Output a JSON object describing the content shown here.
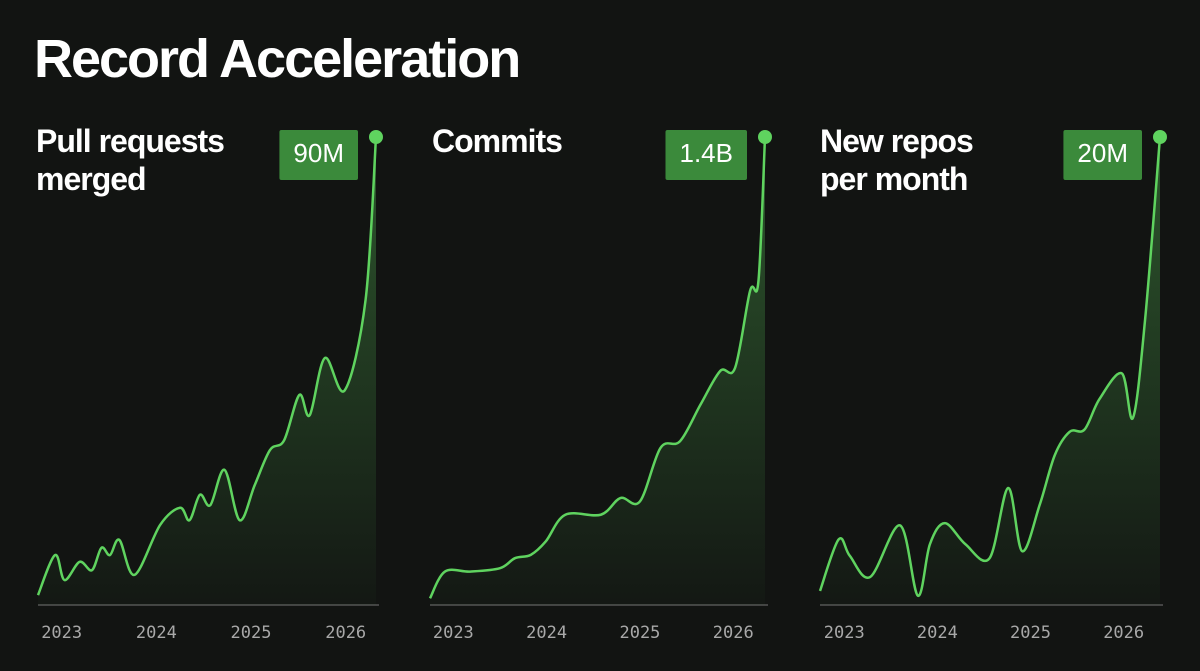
{
  "title": "Record Acceleration",
  "chart_data": [
    {
      "type": "line",
      "title": "Pull requests merged",
      "color": "#5fd35f",
      "x": [
        2022.75,
        2022.93,
        2023.03,
        2023.19,
        2023.32,
        2023.42,
        2023.51,
        2023.61,
        2023.77,
        2024.04,
        2024.25,
        2024.35,
        2024.46,
        2024.57,
        2024.72,
        2024.88,
        2025.04,
        2025.2,
        2025.35,
        2025.51,
        2025.62,
        2025.78,
        2025.99,
        2026.21,
        2026.32
      ],
      "values": [
        1.9,
        9.6,
        4.8,
        8.3,
        6.7,
        11,
        9.6,
        12.5,
        5.8,
        15.4,
        18.7,
        16.3,
        21.2,
        19.2,
        26,
        16.3,
        23.1,
        29.8,
        31.7,
        40.4,
        36.5,
        47.5,
        41.3,
        58.7,
        90
      ],
      "value_labels": [
        null,
        null,
        null,
        null,
        null,
        null,
        null,
        null,
        null,
        null,
        null,
        null,
        null,
        null,
        null,
        null,
        null,
        null,
        null,
        null,
        null,
        null,
        null,
        null,
        "90M"
      ],
      "xlim": [
        2022.75,
        2026.32
      ],
      "xticks": [
        2023,
        2024,
        2025,
        2026
      ],
      "ylim": [
        0,
        90
      ]
    },
    {
      "type": "line",
      "title": "Commits",
      "color": "#5fd35f",
      "x": [
        2022.75,
        2022.91,
        2023.18,
        2023.5,
        2023.66,
        2023.83,
        2023.99,
        2024.2,
        2024.58,
        2024.79,
        2025,
        2025.22,
        2025.43,
        2025.65,
        2025.86,
        2026.02,
        2026.18,
        2026.27,
        2026.34
      ],
      "values": [
        0.02,
        0.1,
        0.1,
        0.11,
        0.14,
        0.15,
        0.19,
        0.27,
        0.27,
        0.32,
        0.31,
        0.47,
        0.49,
        0.6,
        0.7,
        0.71,
        0.94,
        0.97,
        1.4
      ],
      "value_labels": [
        null,
        null,
        null,
        null,
        null,
        null,
        null,
        null,
        null,
        null,
        null,
        null,
        null,
        null,
        null,
        null,
        null,
        null,
        "1.4B"
      ],
      "xlim": [
        2022.75,
        2026.34
      ],
      "xticks": [
        2023,
        2024,
        2025,
        2026
      ],
      "ylim": [
        0,
        1.4
      ]
    },
    {
      "type": "line",
      "title": "New repos per month",
      "color": "#5fd35f",
      "x": [
        2022.74,
        2022.94,
        2023.06,
        2023.28,
        2023.6,
        2023.79,
        2023.92,
        2024.08,
        2024.3,
        2024.56,
        2024.76,
        2024.91,
        2025.1,
        2025.26,
        2025.42,
        2025.58,
        2025.74,
        2025.98,
        2026.1,
        2026.23,
        2026.39
      ],
      "values": [
        0.6,
        2.8,
        2.1,
        1.2,
        3.4,
        0.4,
        2.6,
        3.5,
        2.6,
        2.0,
        5.0,
        2.3,
        4.3,
        6.4,
        7.4,
        7.5,
        8.8,
        9.9,
        8.0,
        12.2,
        20
      ],
      "value_labels": [
        null,
        null,
        null,
        null,
        null,
        null,
        null,
        null,
        null,
        null,
        null,
        null,
        null,
        null,
        null,
        null,
        null,
        null,
        null,
        null,
        "20M"
      ],
      "xlim": [
        2022.74,
        2026.39
      ],
      "xticks": [
        2023,
        2024,
        2025,
        2026
      ],
      "ylim": [
        0,
        20
      ]
    }
  ]
}
